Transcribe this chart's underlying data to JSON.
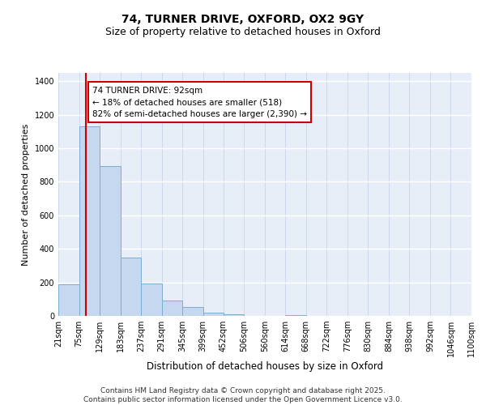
{
  "title_line1": "74, TURNER DRIVE, OXFORD, OX2 9GY",
  "title_line2": "Size of property relative to detached houses in Oxford",
  "xlabel": "Distribution of detached houses by size in Oxford",
  "ylabel": "Number of detached properties",
  "bin_edges": [
    21,
    75,
    129,
    183,
    237,
    291,
    345,
    399,
    452,
    506,
    560,
    614,
    668,
    722,
    776,
    830,
    884,
    938,
    992,
    1046,
    1100
  ],
  "counts": [
    190,
    1130,
    895,
    350,
    195,
    90,
    55,
    20,
    10,
    0,
    0,
    5,
    0,
    0,
    0,
    0,
    0,
    0,
    0,
    0
  ],
  "bar_color": "#c5d8f0",
  "bar_edge_color": "#7baed4",
  "subject_size": 92,
  "subject_line_color": "#cc0000",
  "annotation_text": "74 TURNER DRIVE: 92sqm\n← 18% of detached houses are smaller (518)\n82% of semi-detached houses are larger (2,390) →",
  "annotation_box_color": "#cc0000",
  "ylim": [
    0,
    1450
  ],
  "yticks": [
    0,
    200,
    400,
    600,
    800,
    1000,
    1200,
    1400
  ],
  "background_color": "#e8eef8",
  "grid_color": "#c8d4e8",
  "footer_line1": "Contains HM Land Registry data © Crown copyright and database right 2025.",
  "footer_line2": "Contains public sector information licensed under the Open Government Licence v3.0.",
  "title_fontsize": 10,
  "subtitle_fontsize": 9,
  "tick_fontsize": 7,
  "ylabel_fontsize": 8,
  "xlabel_fontsize": 8.5,
  "footer_fontsize": 6.5,
  "annot_fontsize": 7.5
}
